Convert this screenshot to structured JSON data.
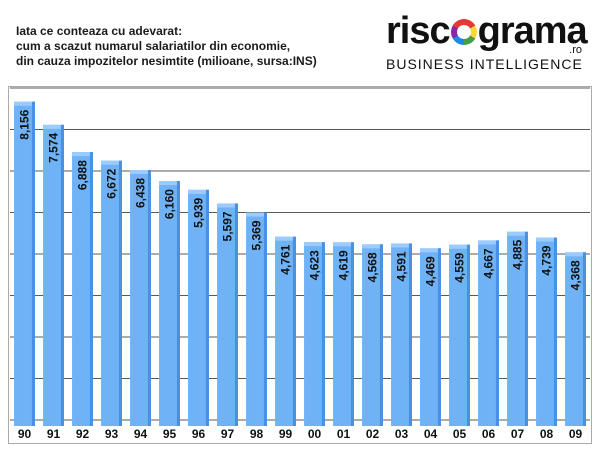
{
  "header": {
    "line1": "Iata ce conteaza cu adevarat:",
    "line2": "cum a scazut numarul salariatilor din economie,",
    "line3": "din cauza impozitelor nesimtite (milioane, sursa:INS)"
  },
  "logo": {
    "word_left": "risc",
    "word_right": "grama",
    "domain": ".ro",
    "tagline": "BUSINESS INTELLIGENCE"
  },
  "colors": {
    "bar": "#6fb2f5",
    "bar_top": "#9cccff",
    "bar_side": "#4a90e0",
    "frame": "#aaaaaa",
    "grid": "#222222"
  },
  "chart_data": {
    "type": "bar",
    "title": "",
    "categories": [
      "90",
      "91",
      "92",
      "93",
      "94",
      "95",
      "96",
      "97",
      "98",
      "99",
      "00",
      "01",
      "02",
      "03",
      "04",
      "05",
      "06",
      "07",
      "08",
      "09"
    ],
    "values": [
      8156,
      7574,
      6888,
      6672,
      6438,
      6160,
      5939,
      5597,
      5369,
      4761,
      4623,
      4619,
      4568,
      4591,
      4469,
      4559,
      4667,
      4885,
      4739,
      4368
    ],
    "labels": [
      "8,156",
      "7,574",
      "6,888",
      "6,672",
      "6,438",
      "6,160",
      "5,939",
      "5,597",
      "5,369",
      "4,761",
      "4,623",
      "4,619",
      "4,568",
      "4,591",
      "4,469",
      "4,559",
      "4,667",
      "4,885",
      "4,739",
      "4,368"
    ],
    "ylim": [
      0,
      8500
    ],
    "gridlines": 8,
    "grid": true,
    "legend": "none"
  }
}
